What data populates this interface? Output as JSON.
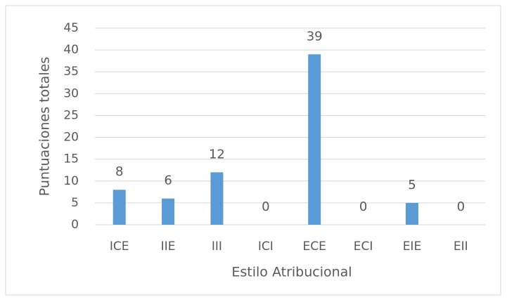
{
  "chart_data": {
    "type": "bar",
    "categories": [
      "ICE",
      "IIE",
      "III",
      "ICI",
      "ECE",
      "ECI",
      "EIE",
      "EII"
    ],
    "values": [
      8,
      6,
      12,
      0,
      39,
      0,
      5,
      0
    ],
    "color": "#5b9bd5",
    "xlabel": "Estilo Atribucional",
    "ylabel": "Puntuaciones totales",
    "ylim": [
      0,
      45
    ],
    "yticks": [
      0,
      5,
      10,
      15,
      20,
      25,
      30,
      35,
      40,
      45
    ],
    "grid": true,
    "data_labels": true
  }
}
